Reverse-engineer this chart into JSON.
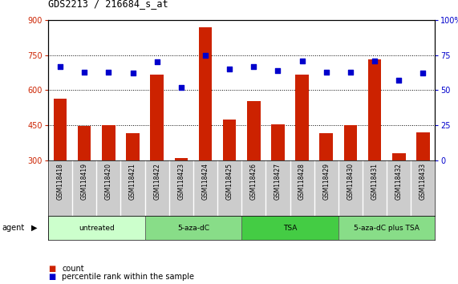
{
  "title": "GDS2213 / 216684_s_at",
  "samples": [
    "GSM118418",
    "GSM118419",
    "GSM118420",
    "GSM118421",
    "GSM118422",
    "GSM118423",
    "GSM118424",
    "GSM118425",
    "GSM118426",
    "GSM118427",
    "GSM118428",
    "GSM118429",
    "GSM118430",
    "GSM118431",
    "GSM118432",
    "GSM118433"
  ],
  "counts": [
    565,
    447,
    450,
    415,
    668,
    310,
    870,
    475,
    555,
    455,
    665,
    415,
    450,
    730,
    330,
    420
  ],
  "percentiles": [
    67,
    63,
    63,
    62,
    70,
    52,
    75,
    65,
    67,
    64,
    71,
    63,
    63,
    71,
    57,
    62
  ],
  "bar_color": "#cc2200",
  "dot_color": "#0000cc",
  "ylim_left": [
    300,
    900
  ],
  "ylim_right": [
    0,
    100
  ],
  "yticks_left": [
    300,
    450,
    600,
    750,
    900
  ],
  "yticks_right": [
    0,
    25,
    50,
    75,
    100
  ],
  "groups": [
    {
      "label": "untreated",
      "start": 0,
      "end": 4
    },
    {
      "label": "5-aza-dC",
      "start": 4,
      "end": 8
    },
    {
      "label": "TSA",
      "start": 8,
      "end": 12
    },
    {
      "label": "5-aza-dC plus TSA",
      "start": 12,
      "end": 16
    }
  ],
  "group_colors": [
    "#ccffcc",
    "#88dd88",
    "#44cc44",
    "#88dd88"
  ],
  "agent_label": "agent",
  "legend_count_label": "count",
  "legend_percentile_label": "percentile rank within the sample",
  "background_color": "#ffffff",
  "plot_bg_color": "#ffffff",
  "sample_area_color": "#cccccc",
  "left_tick_color": "#cc2200",
  "right_tick_color": "#0000cc"
}
